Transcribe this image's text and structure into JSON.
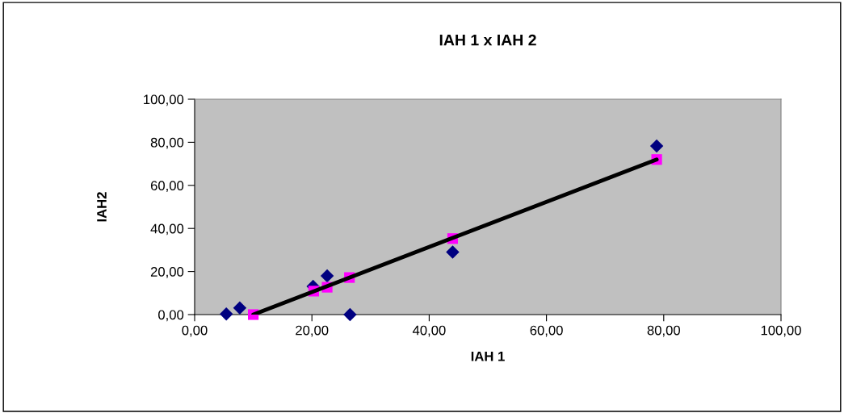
{
  "chart_data": {
    "type": "scatter",
    "title": "IAH 1 x IAH 2",
    "xlabel": "IAH 1",
    "ylabel": "IAH2",
    "xlim": [
      0,
      100
    ],
    "ylim": [
      0,
      100
    ],
    "xticks": [
      {
        "value": 0,
        "label": "0,00"
      },
      {
        "value": 20,
        "label": "20,00"
      },
      {
        "value": 40,
        "label": "40,00"
      },
      {
        "value": 60,
        "label": "60,00"
      },
      {
        "value": 80,
        "label": "80,00"
      },
      {
        "value": 100,
        "label": "100,00"
      }
    ],
    "yticks": [
      {
        "value": 0,
        "label": "0,00"
      },
      {
        "value": 20,
        "label": "20,00"
      },
      {
        "value": 40,
        "label": "40,00"
      },
      {
        "value": 60,
        "label": "60,00"
      },
      {
        "value": 80,
        "label": "80,00"
      },
      {
        "value": 100,
        "label": "100,00"
      }
    ],
    "grid": false,
    "legend": false,
    "series": [
      {
        "marker": "diamond",
        "color": "#000080",
        "x": [
          5.4,
          7.7,
          20.2,
          22.6,
          26.5,
          44.0,
          78.8
        ],
        "values": [
          0.3,
          3.1,
          13.1,
          18.0,
          0,
          29.0,
          78.3
        ]
      },
      {
        "marker": "square",
        "color": "#ff00ff",
        "x": [
          10.0,
          20.3,
          22.6,
          26.4,
          44.0,
          78.8
        ],
        "values": [
          0,
          10.9,
          12.7,
          17.2,
          35.3,
          72.0
        ]
      },
      {
        "type": "line",
        "marker": "none",
        "line_style": "solid",
        "color": "#000000",
        "x": [
          10.0,
          78.8
        ],
        "values": [
          0,
          72.0
        ]
      }
    ]
  }
}
